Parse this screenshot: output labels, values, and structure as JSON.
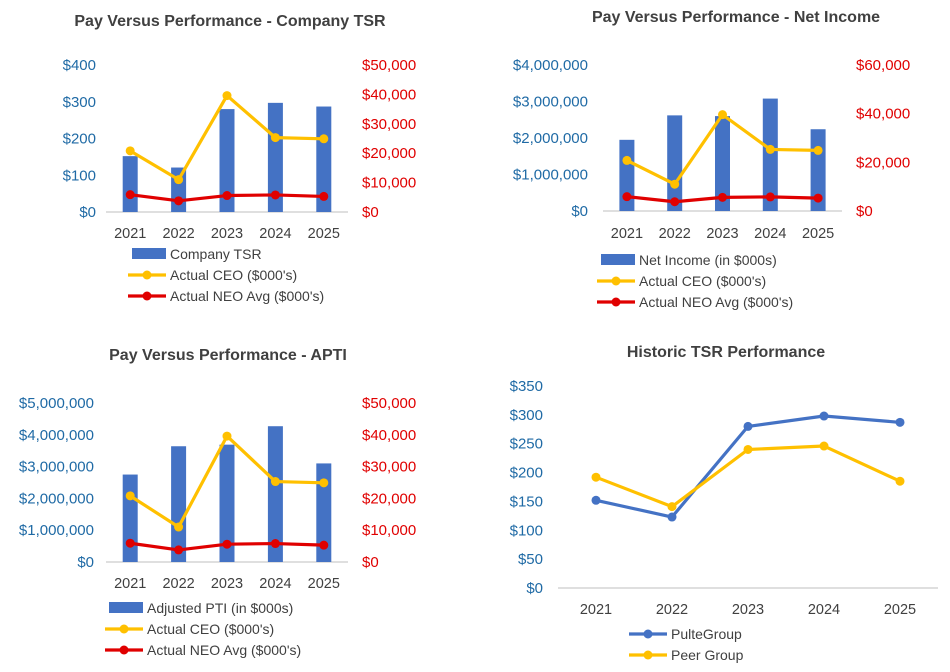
{
  "colors": {
    "bar": "#4472c4",
    "ceo": "#ffc000",
    "neo": "#e00000",
    "left_axis": "#1f6aa5",
    "right_axis": "#e00000",
    "pulte": "#4472c4",
    "peer": "#ffc000",
    "text": "#404040",
    "axis_line": "#bfbfbf"
  },
  "chart_data": [
    {
      "type": "bar",
      "title": "Pay Versus Performance - Company TSR",
      "categories": [
        "2021",
        "2022",
        "2023",
        "2024",
        "2025"
      ],
      "left_axis": {
        "ticks": [
          "$0",
          "$100",
          "$200",
          "$300",
          "$400"
        ],
        "range": [
          0,
          400
        ]
      },
      "right_axis": {
        "ticks": [
          "$0",
          "$10,000",
          "$20,000",
          "$30,000",
          "$40,000",
          "$50,000"
        ],
        "range": [
          0,
          50000
        ]
      },
      "series": [
        {
          "name": "Company TSR",
          "kind": "bar",
          "axis": "left",
          "values": [
            152,
            121,
            280,
            297,
            287
          ]
        },
        {
          "name": "Actual CEO ($000's)",
          "kind": "line",
          "axis": "right",
          "values": [
            20800,
            11000,
            39600,
            25300,
            24900
          ]
        },
        {
          "name": "Actual NEO Avg ($000's)",
          "kind": "line",
          "axis": "right",
          "values": [
            5900,
            3800,
            5600,
            5800,
            5300
          ]
        }
      ]
    },
    {
      "type": "bar",
      "title": "Pay Versus Performance - Net Income",
      "categories": [
        "2021",
        "2022",
        "2023",
        "2024",
        "2025"
      ],
      "left_axis": {
        "ticks": [
          "$0",
          "$1,000,000",
          "$2,000,000",
          "$3,000,000",
          "$4,000,000"
        ],
        "range": [
          0,
          4000000
        ]
      },
      "right_axis": {
        "ticks": [
          "$0",
          "$20,000",
          "$40,000",
          "$60,000"
        ],
        "range": [
          0,
          60000
        ]
      },
      "series": [
        {
          "name": "Net Income (in $000s)",
          "kind": "bar",
          "axis": "left",
          "values": [
            1950000,
            2620000,
            2600000,
            3080000,
            2240000
          ]
        },
        {
          "name": "Actual CEO ($000's)",
          "kind": "line",
          "axis": "right",
          "values": [
            20800,
            11000,
            39600,
            25300,
            24900
          ]
        },
        {
          "name": "Actual NEO Avg ($000's)",
          "kind": "line",
          "axis": "right",
          "values": [
            5900,
            3800,
            5600,
            5800,
            5300
          ]
        }
      ]
    },
    {
      "type": "bar",
      "title": "Pay Versus Performance - APTI",
      "categories": [
        "2021",
        "2022",
        "2023",
        "2024",
        "2025"
      ],
      "left_axis": {
        "ticks": [
          "$0",
          "$1,000,000",
          "$2,000,000",
          "$3,000,000",
          "$4,000,000",
          "$5,000,000"
        ],
        "range": [
          0,
          5000000
        ]
      },
      "right_axis": {
        "ticks": [
          "$0",
          "$10,000",
          "$20,000",
          "$30,000",
          "$40,000",
          "$50,000"
        ],
        "range": [
          0,
          50000
        ]
      },
      "series": [
        {
          "name": "Adjusted PTI (in $000s)",
          "kind": "bar",
          "axis": "left",
          "values": [
            2750000,
            3640000,
            3690000,
            4270000,
            3100000
          ]
        },
        {
          "name": "Actual CEO ($000's)",
          "kind": "line",
          "axis": "right",
          "values": [
            20800,
            11000,
            39600,
            25300,
            24900
          ]
        },
        {
          "name": "Actual NEO Avg ($000's)",
          "kind": "line",
          "axis": "right",
          "values": [
            5900,
            3800,
            5600,
            5800,
            5300
          ]
        }
      ]
    },
    {
      "type": "line",
      "title": "Historic TSR Performance",
      "categories": [
        "2021",
        "2022",
        "2023",
        "2024",
        "2025"
      ],
      "y_axis": {
        "ticks": [
          "$0",
          "$50",
          "$100",
          "$150",
          "$200",
          "$250",
          "$300",
          "$350"
        ],
        "range": [
          0,
          350
        ]
      },
      "series": [
        {
          "name": "PulteGroup",
          "values": [
            152,
            123,
            280,
            298,
            287
          ]
        },
        {
          "name": "Peer Group",
          "values": [
            192,
            141,
            240,
            246,
            185
          ]
        }
      ]
    }
  ]
}
